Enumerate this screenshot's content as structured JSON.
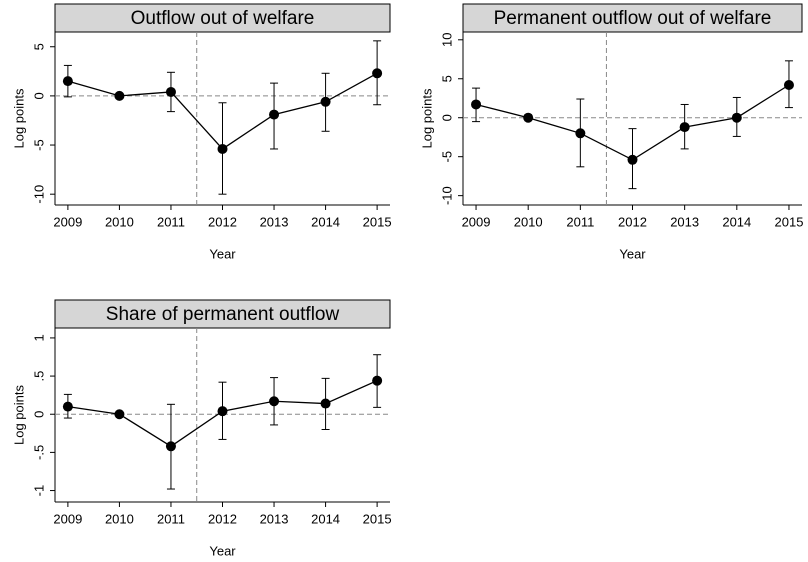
{
  "chart_data": [
    {
      "type": "errorbar-line",
      "title": "Outflow out of welfare",
      "xlabel": "Year",
      "ylabel": "Log points",
      "x": [
        2009,
        2010,
        2011,
        2012,
        2013,
        2014,
        2015
      ],
      "values": [
        1.5,
        0,
        0.4,
        -5.4,
        -1.9,
        -0.6,
        2.3
      ],
      "ci_low": [
        -0.1,
        0,
        -1.6,
        -10.0,
        -5.4,
        -3.6,
        -0.9
      ],
      "ci_high": [
        3.1,
        0,
        2.4,
        -0.7,
        1.3,
        2.3,
        5.6
      ],
      "xlim": [
        2008.75,
        2015.25
      ],
      "xticks": [
        2009,
        2010,
        2011,
        2012,
        2013,
        2014,
        2015
      ],
      "ylim": [
        -11.1,
        6.5
      ],
      "yticks": [
        -10,
        -5,
        0,
        5
      ],
      "vline": 2011.5,
      "hline": 0,
      "color": "#000000"
    },
    {
      "type": "errorbar-line",
      "title": "Permanent outflow out of welfare",
      "xlabel": "Year",
      "ylabel": "Log points",
      "x": [
        2009,
        2010,
        2011,
        2012,
        2013,
        2014,
        2015
      ],
      "values": [
        1.7,
        0,
        -2.0,
        -5.4,
        -1.2,
        0,
        4.2
      ],
      "ci_low": [
        -0.5,
        0,
        -6.3,
        -9.1,
        -4.0,
        -2.4,
        1.3
      ],
      "ci_high": [
        3.8,
        0,
        2.4,
        -1.4,
        1.7,
        2.6,
        7.3
      ],
      "xlim": [
        2008.75,
        2015.25
      ],
      "xticks": [
        2009,
        2010,
        2011,
        2012,
        2013,
        2014,
        2015
      ],
      "ylim": [
        -11.2,
        11
      ],
      "yticks": [
        -10,
        -5,
        0,
        5,
        10
      ],
      "vline": 2011.5,
      "hline": 0,
      "color": "#000000"
    },
    {
      "type": "errorbar-line",
      "title": "Share of permanent outflow",
      "xlabel": "Year",
      "ylabel": "Log points",
      "x": [
        2009,
        2010,
        2011,
        2012,
        2013,
        2014,
        2015
      ],
      "values": [
        0.1,
        0,
        -0.42,
        0.04,
        0.17,
        0.14,
        0.44
      ],
      "ci_low": [
        -0.05,
        0,
        -0.98,
        -0.33,
        -0.14,
        -0.2,
        0.09
      ],
      "ci_high": [
        0.26,
        0,
        0.13,
        0.42,
        0.48,
        0.47,
        0.78
      ],
      "xlim": [
        2008.75,
        2015.25
      ],
      "xticks": [
        2009,
        2010,
        2011,
        2012,
        2013,
        2014,
        2015
      ],
      "ylim": [
        -1.15,
        1.13
      ],
      "yticks": [
        {
          "value": -1,
          "label": "-1"
        },
        {
          "value": -0.5,
          "label": "-.5"
        },
        0,
        {
          "value": 0.5,
          "label": ".5"
        },
        1
      ],
      "vline": 2011.5,
      "hline": 0,
      "color": "#000000"
    }
  ]
}
